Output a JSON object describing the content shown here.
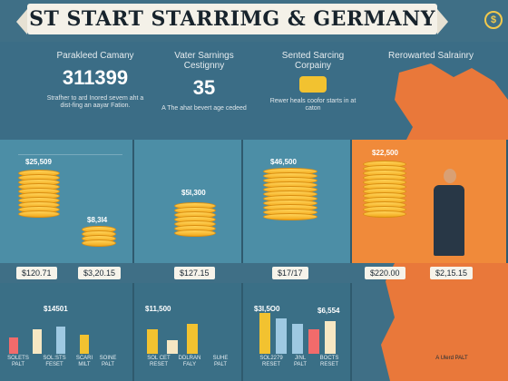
{
  "header": {
    "title": "ST START STARRIMG & GERMANY",
    "logo_text": "$"
  },
  "stats": [
    {
      "heading": "Parakleed Camany",
      "number": "311399",
      "desc": "Strafher to ard Inored sevem aht a dist-fing an aayar Fation."
    },
    {
      "heading": "Vater Sarnings Cestignny",
      "number": "35",
      "desc": "A The ahat bevert age cedeed"
    },
    {
      "heading": "Sented Sarcing Corpainy",
      "number": "",
      "desc": "Rewer heals coofor starts in at caton"
    },
    {
      "heading": "Rerowarted Salrainry",
      "number": "",
      "desc": ""
    }
  ],
  "panels": [
    {
      "top_label": "$25,509",
      "price_a": "$120.71",
      "price_b": "$3,20.15",
      "small_label": "$8,3I4"
    },
    {
      "top_label": "$5I,300",
      "price_a": "$127.15",
      "price_b": ""
    },
    {
      "top_label": "$46,500",
      "price_a": "$17/17",
      "price_b": ""
    },
    {
      "top_label": "$22,500",
      "price_a": "$220.00",
      "price_b": "$2,15.15"
    }
  ],
  "lower": [
    {
      "label": "$14501",
      "foot": [
        "SOLETS PALT",
        "SOL:STS FESET",
        "SCARI MILT",
        "SOINE PALT"
      ]
    },
    {
      "label": "$11,500",
      "foot": [
        "SOL CET RESET",
        "DDLRAN FALY",
        "SUHE PALT"
      ]
    },
    {
      "label": "$3I,5O0",
      "label2": "$6,554",
      "foot": [
        "SOL2279 RESET",
        "JINL PALT",
        "BOCTS RESET"
      ]
    },
    {
      "label": "",
      "foot": [
        "A Ulerd PALT"
      ]
    }
  ],
  "chart_data": {
    "type": "bar",
    "series": [
      {
        "name": "",
        "values": [
          12,
          18,
          20,
          14
        ]
      },
      {
        "name": "",
        "values": [
          18,
          10,
          22
        ]
      },
      {
        "name": "",
        "values": [
          30,
          26,
          22,
          18,
          24
        ]
      }
    ]
  },
  "colors": {
    "teal": "#4c8ea6",
    "orange": "#f08a3a",
    "gold": "#f2b22a"
  }
}
